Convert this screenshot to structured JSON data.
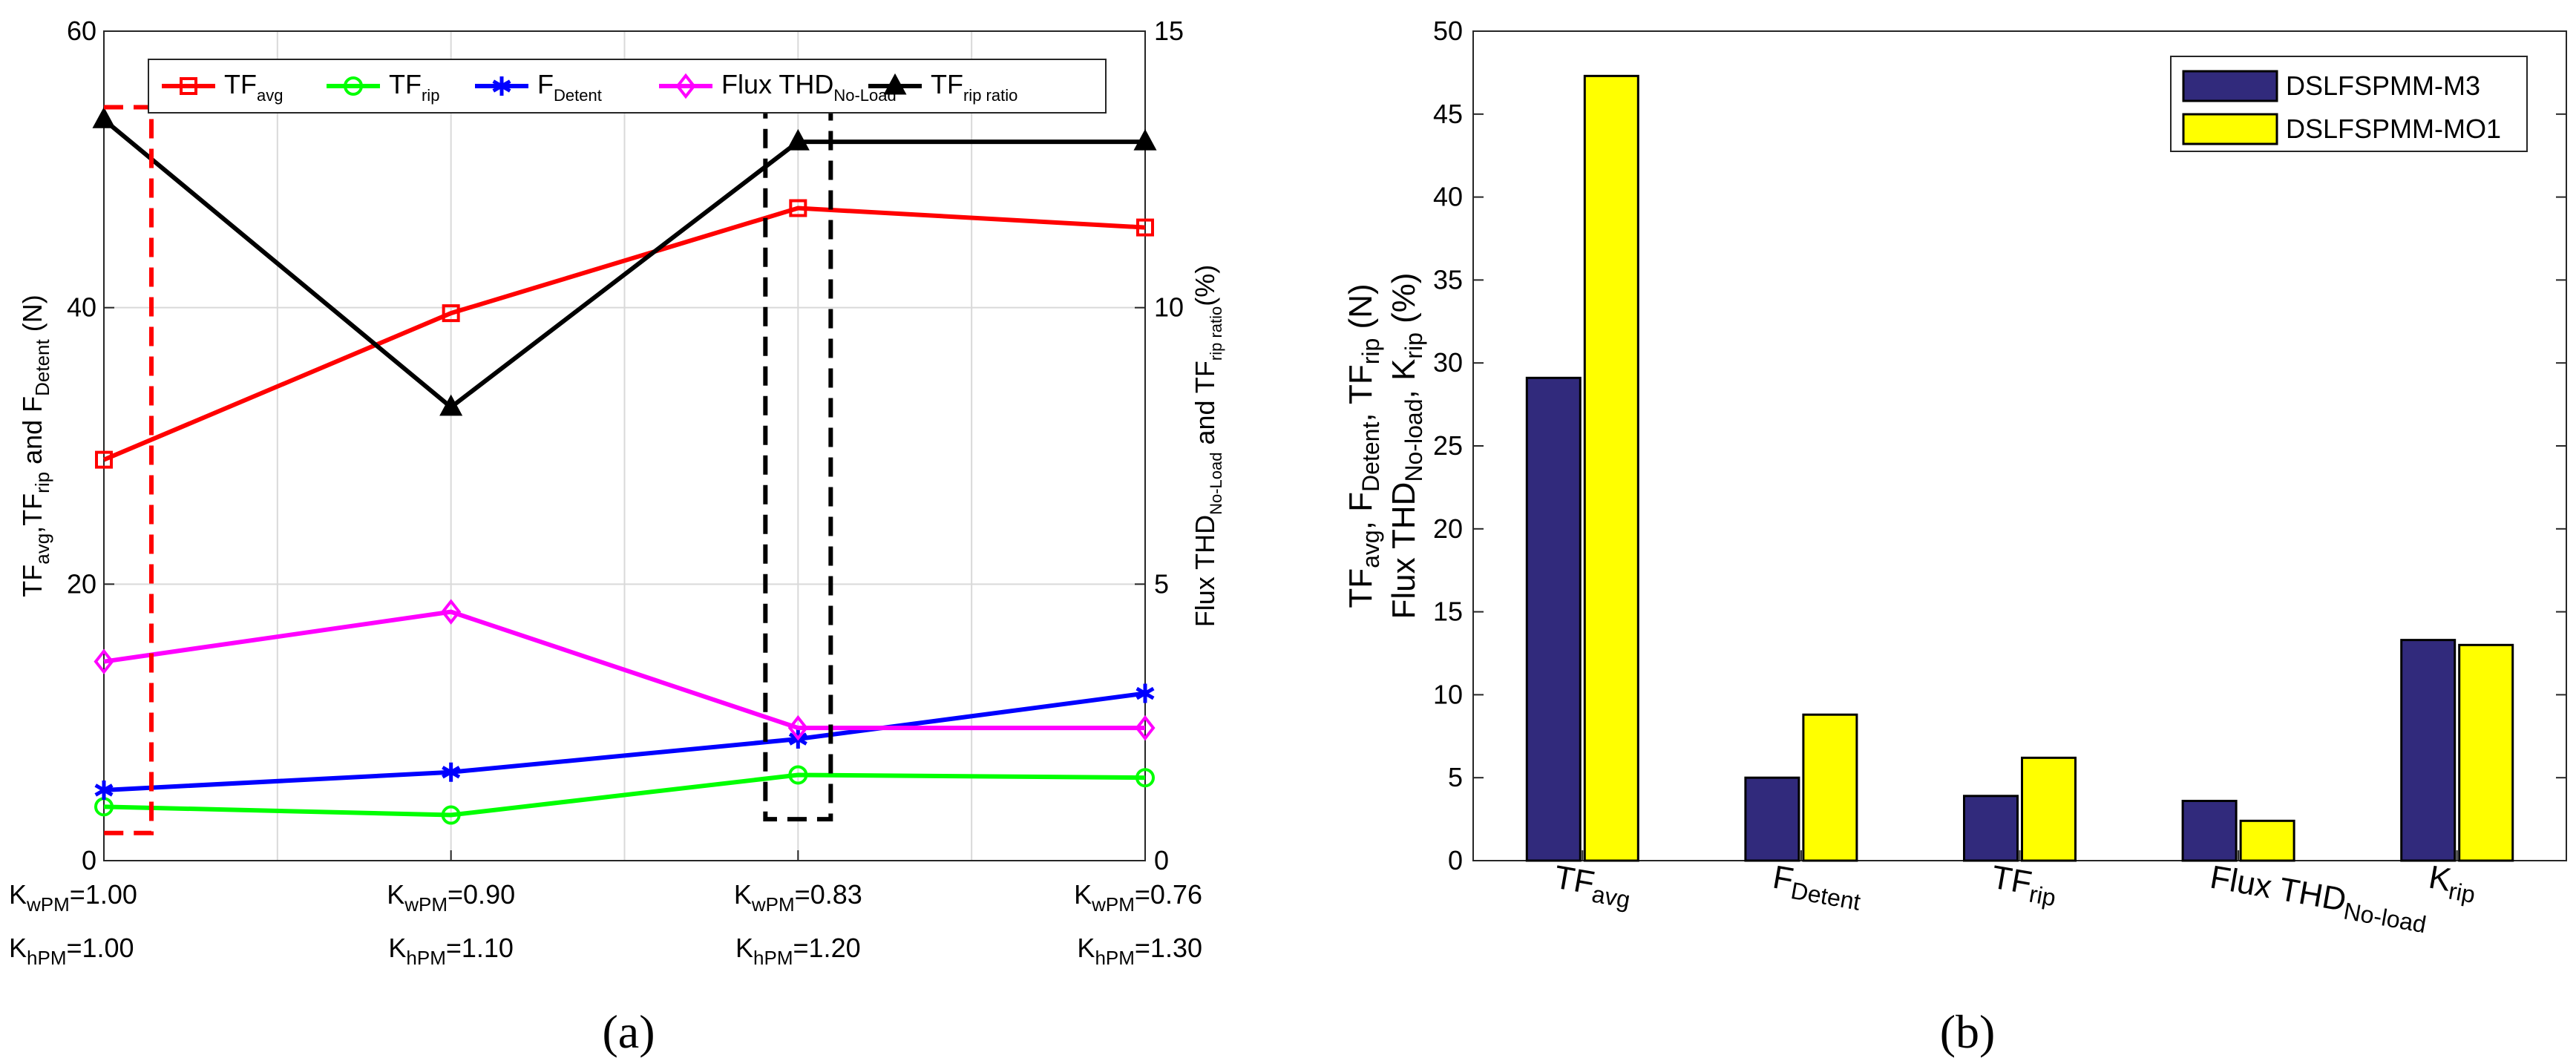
{
  "chart_data": [
    {
      "id": "a",
      "type": "line",
      "caption": "(a)",
      "categories": [
        {
          "kw": {
            "base": "K",
            "sub": "wPM",
            "value": "=1.00"
          },
          "kh": {
            "base": "K",
            "sub": "hPM",
            "value": "=1.00"
          }
        },
        {
          "kw": {
            "base": "K",
            "sub": "wPM",
            "value": "=0.90"
          },
          "kh": {
            "base": "K",
            "sub": "hPM",
            "value": "=1.10"
          }
        },
        {
          "kw": {
            "base": "K",
            "sub": "wPM",
            "value": "=0.83"
          },
          "kh": {
            "base": "K",
            "sub": "hPM",
            "value": "=1.20"
          }
        },
        {
          "kw": {
            "base": "K",
            "sub": "wPM",
            "value": "=0.76"
          },
          "kh": {
            "base": "K",
            "sub": "hPM",
            "value": "=1.30"
          }
        }
      ],
      "left_axis": {
        "ylim": [
          0,
          60
        ],
        "ticks": [
          "0",
          "20",
          "40",
          "60"
        ],
        "label": [
          {
            "t": "TF",
            "s": ""
          },
          {
            "t": "avg",
            "s": "sub"
          },
          {
            "t": ",TF",
            "s": ""
          },
          {
            "t": "rip",
            "s": "sub"
          },
          {
            "t": " and F",
            "s": ""
          },
          {
            "t": "Detent",
            "s": "sub"
          },
          {
            "t": " (N)",
            "s": ""
          }
        ]
      },
      "right_axis": {
        "ylim": [
          0,
          15
        ],
        "ticks": [
          "0",
          "5",
          "10",
          "15"
        ],
        "label": [
          {
            "t": "Flux THD",
            "s": ""
          },
          {
            "t": "No-Load",
            "s": "sub"
          },
          {
            "t": " and TF",
            "s": ""
          },
          {
            "t": "rip ratio",
            "s": "sub"
          },
          {
            "t": "(%)",
            "s": ""
          }
        ]
      },
      "series": [
        {
          "name": [
            {
              "t": "TF",
              "s": ""
            },
            {
              "t": "avg",
              "s": "sub"
            }
          ],
          "axis": "left",
          "color": "#ff0000",
          "marker": "square",
          "values": [
            29.0,
            39.6,
            47.2,
            45.8
          ]
        },
        {
          "name": [
            {
              "t": "TF",
              "s": ""
            },
            {
              "t": "rip",
              "s": "sub"
            }
          ],
          "axis": "left",
          "color": "#00ff00",
          "marker": "circle",
          "values": [
            3.9,
            3.3,
            6.2,
            6.0
          ]
        },
        {
          "name": [
            {
              "t": "F",
              "s": ""
            },
            {
              "t": "Detent",
              "s": "sub"
            }
          ],
          "axis": "left",
          "color": "#0000ff",
          "marker": "star",
          "values": [
            5.1,
            6.4,
            8.8,
            12.1
          ]
        },
        {
          "name": [
            {
              "t": "Flux THD",
              "s": ""
            },
            {
              "t": "No-Load",
              "s": "sub"
            }
          ],
          "axis": "right",
          "color": "#ff00ff",
          "marker": "diamond",
          "values": [
            3.6,
            4.5,
            2.4,
            2.4
          ]
        },
        {
          "name": [
            {
              "t": "TF",
              "s": ""
            },
            {
              "t": "rip ratio",
              "s": "sub"
            }
          ],
          "axis": "right",
          "color": "#000000",
          "marker": "triangle",
          "values": [
            13.4,
            8.2,
            13.0,
            13.0
          ]
        }
      ],
      "highlights": [
        {
          "category_index": 0,
          "color": "#ff0000",
          "style": "dashed"
        },
        {
          "category_index": 2,
          "color": "#000000",
          "style": "dashed"
        }
      ]
    },
    {
      "id": "b",
      "type": "bar",
      "caption": "(b)",
      "ylim": [
        0,
        50
      ],
      "yticks": [
        "0",
        "5",
        "10",
        "15",
        "20",
        "25",
        "30",
        "35",
        "40",
        "45",
        "50"
      ],
      "ylabel_line1": [
        {
          "t": "TF",
          "s": ""
        },
        {
          "t": "avg",
          "s": "sub"
        },
        {
          "t": ", F",
          "s": ""
        },
        {
          "t": "Detent",
          "s": "sub"
        },
        {
          "t": ", TF",
          "s": ""
        },
        {
          "t": "rip",
          "s": "sub"
        },
        {
          "t": " (N)",
          "s": ""
        }
      ],
      "ylabel_line2": [
        {
          "t": "Flux THD",
          "s": ""
        },
        {
          "t": "No-load",
          "s": "sub"
        },
        {
          "t": ", K",
          "s": ""
        },
        {
          "t": "rip",
          "s": "sub"
        },
        {
          "t": " (%)",
          "s": ""
        }
      ],
      "categories": [
        [
          {
            "t": "TF",
            "s": ""
          },
          {
            "t": "avg",
            "s": "sub"
          }
        ],
        [
          {
            "t": "F",
            "s": ""
          },
          {
            "t": "Detent",
            "s": "sub"
          }
        ],
        [
          {
            "t": "TF",
            "s": ""
          },
          {
            "t": "rip",
            "s": "sub"
          }
        ],
        [
          {
            "t": "Flux THD",
            "s": ""
          },
          {
            "t": "No-load",
            "s": "sub"
          }
        ],
        [
          {
            "t": "K",
            "s": ""
          },
          {
            "t": "rip",
            "s": "sub"
          }
        ]
      ],
      "series": [
        {
          "name": "DSLFSPMM-M3",
          "color": "#312a7c",
          "values": [
            29.1,
            5.0,
            3.9,
            3.6,
            13.3
          ]
        },
        {
          "name": "DSLFSPMM-MO1",
          "color": "#ffff00",
          "values": [
            47.3,
            8.8,
            6.2,
            2.4,
            13.0
          ]
        }
      ]
    }
  ]
}
